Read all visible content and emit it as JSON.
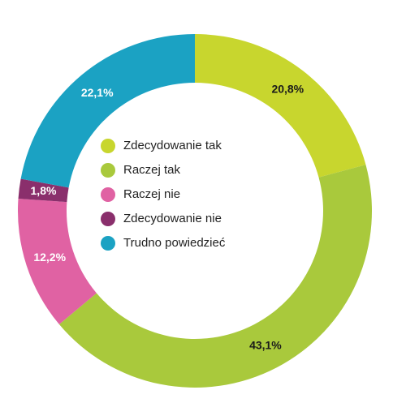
{
  "chart_data": {
    "type": "donut",
    "categories": [
      "Zdecydowanie tak",
      "Raczej tak",
      "Raczej nie",
      "Zdecydowanie nie",
      "Trudno powiedzieć"
    ],
    "values": [
      20.8,
      43.1,
      12.2,
      1.8,
      22.1
    ],
    "value_labels": [
      "20,8%",
      "43,1%",
      "12,2%",
      "1,8%",
      "22,1%"
    ],
    "colors": [
      "#c8d62e",
      "#a9c93c",
      "#e062a3",
      "#8a2f6c",
      "#1ba2c3"
    ],
    "label_colors": [
      "#1a1a1a",
      "#1a1a1a",
      "#ffffff",
      "#ffffff",
      "#ffffff"
    ]
  }
}
